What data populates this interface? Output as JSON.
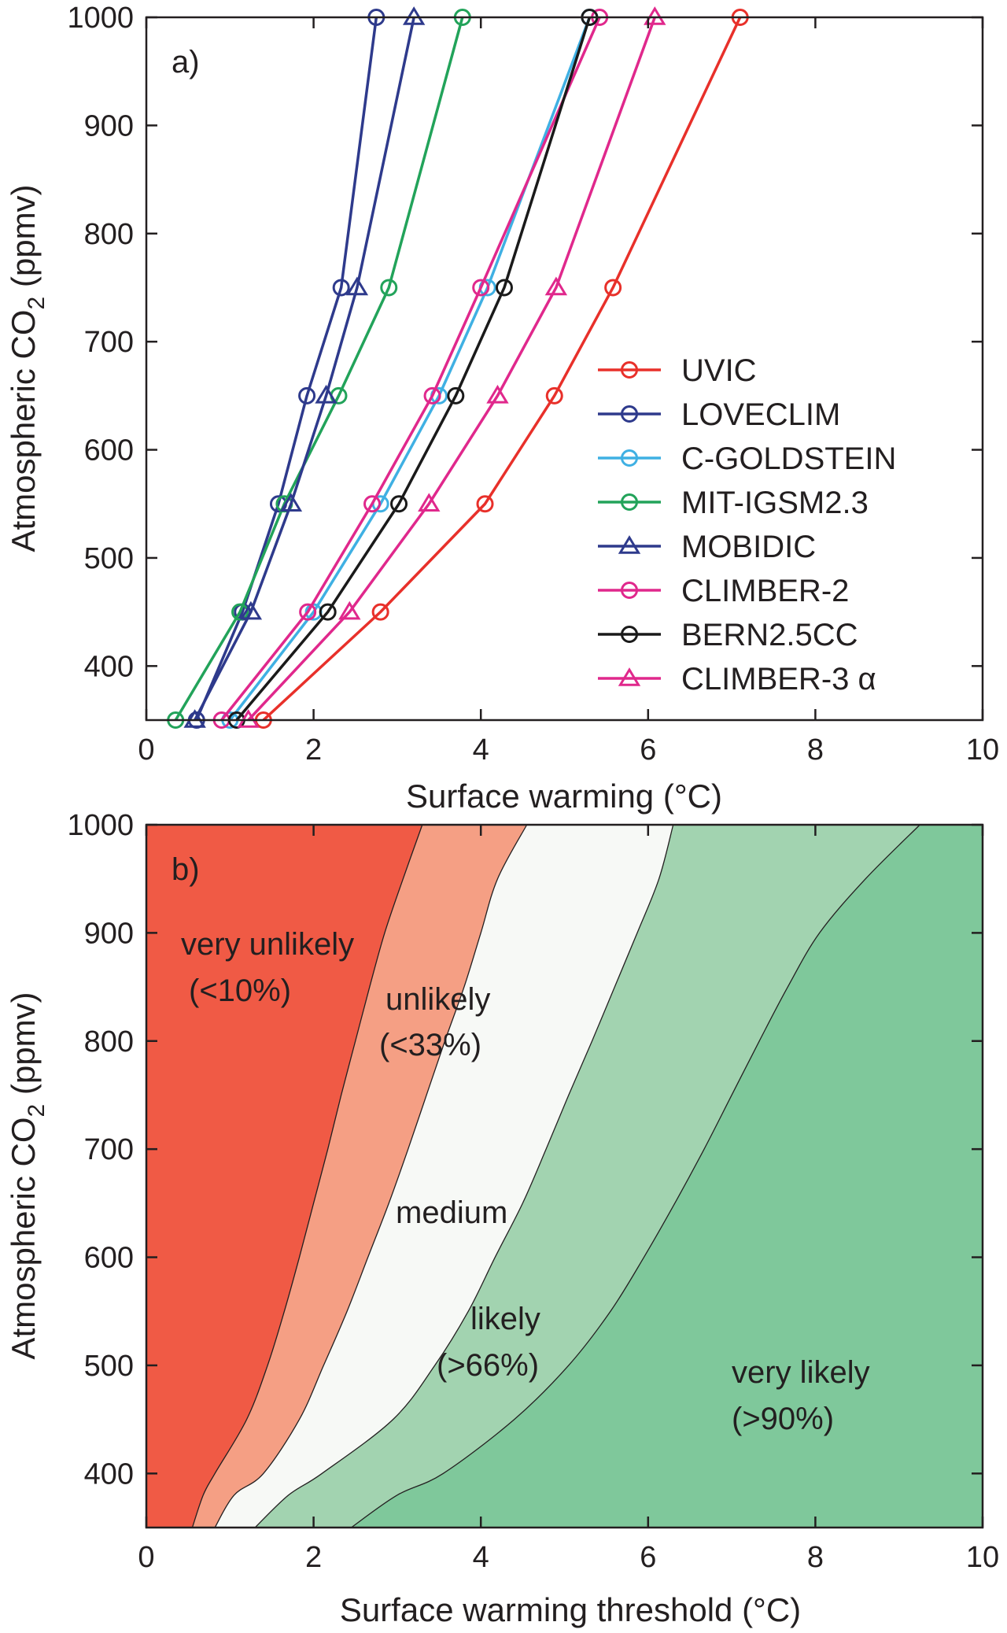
{
  "chart_data": [
    {
      "type": "line",
      "panel_label": "a)",
      "xlabel": "Surface warming (°C)",
      "ylabel": "Atmospheric CO₂ (ppmv)",
      "ylabel_main": "Atmospheric CO",
      "ylabel_sub": "2",
      "ylabel_tail": " (ppmv)",
      "xlim": [
        0,
        10
      ],
      "ylim": [
        350,
        1000
      ],
      "xticks": [
        "0",
        "2",
        "4",
        "6",
        "8",
        "10"
      ],
      "yticks": [
        "400",
        "500",
        "600",
        "700",
        "800",
        "900",
        "1000"
      ],
      "grid": false,
      "legend_position": "center-right",
      "y": [
        350,
        450,
        550,
        650,
        750,
        1000
      ],
      "series": [
        {
          "name": "UVIC",
          "color": "#e8302a",
          "marker": "circle",
          "x": [
            1.4,
            2.8,
            4.05,
            4.88,
            5.58,
            7.1
          ]
        },
        {
          "name": "LOVECLIM",
          "color": "#2e3a8c",
          "marker": "circle",
          "x": [
            0.6,
            1.15,
            1.58,
            1.92,
            2.33,
            2.75
          ]
        },
        {
          "name": "C-GOLDSTEIN",
          "color": "#3fb0e3",
          "marker": "circle",
          "x": [
            1.0,
            2.0,
            2.8,
            3.5,
            4.08,
            5.3
          ]
        },
        {
          "name": "MIT-IGSM2.3",
          "color": "#22a35a",
          "marker": "circle",
          "x": [
            0.35,
            1.12,
            1.65,
            2.3,
            2.9,
            3.78
          ]
        },
        {
          "name": "MOBIDIC",
          "color": "#2e3a8c",
          "marker": "triangle",
          "x": [
            0.58,
            1.25,
            1.73,
            2.15,
            2.52,
            3.2
          ]
        },
        {
          "name": "CLIMBER-2",
          "color": "#e0288c",
          "marker": "circle",
          "x": [
            0.9,
            1.93,
            2.7,
            3.42,
            4.0,
            5.42
          ]
        },
        {
          "name": "BERN2.5CC",
          "color": "#1a1a1a",
          "marker": "circle",
          "x": [
            1.08,
            2.17,
            3.02,
            3.7,
            4.28,
            5.3
          ]
        },
        {
          "name": "CLIMBER-3 α",
          "color": "#e0288c",
          "marker": "triangle",
          "x": [
            1.22,
            2.43,
            3.38,
            4.2,
            4.9,
            6.08
          ]
        }
      ]
    },
    {
      "type": "area",
      "panel_label": "b)",
      "xlabel": "Surface warming threshold (°C)",
      "ylabel": "Atmospheric CO₂ (ppmv)",
      "ylabel_main": "Atmospheric CO",
      "ylabel_sub": "2",
      "ylabel_tail": " (ppmv)",
      "xlim": [
        0,
        10
      ],
      "ylim": [
        350,
        1000
      ],
      "xticks": [
        "0",
        "2",
        "4",
        "6",
        "8",
        "10"
      ],
      "yticks": [
        "400",
        "500",
        "600",
        "700",
        "800",
        "900",
        "1000"
      ],
      "grid": false,
      "boundary_y": [
        350,
        380,
        400,
        450,
        500,
        550,
        600,
        650,
        700,
        750,
        800,
        850,
        900,
        950,
        1000
      ],
      "boundaries": [
        {
          "between": "very unlikely / unlikely",
          "x": [
            0.55,
            0.68,
            0.82,
            1.2,
            1.45,
            1.65,
            1.83,
            2.0,
            2.17,
            2.33,
            2.5,
            2.67,
            2.85,
            3.07,
            3.3
          ]
        },
        {
          "between": "unlikely / medium",
          "x": [
            0.82,
            1.05,
            1.4,
            1.83,
            2.12,
            2.4,
            2.65,
            2.9,
            3.13,
            3.35,
            3.57,
            3.8,
            4.0,
            4.2,
            4.55
          ]
        },
        {
          "between": "medium / likely",
          "x": [
            1.3,
            1.7,
            2.1,
            2.95,
            3.45,
            3.85,
            4.17,
            4.5,
            4.78,
            5.05,
            5.33,
            5.6,
            5.87,
            6.13,
            6.3
          ]
        },
        {
          "between": "likely / very likely",
          "x": [
            2.45,
            3.0,
            3.55,
            4.4,
            5.05,
            5.55,
            5.95,
            6.32,
            6.67,
            7.0,
            7.33,
            7.67,
            8.05,
            8.6,
            9.25
          ]
        }
      ],
      "regions": [
        {
          "label": "very unlikely",
          "range": "(<10%)",
          "color": "#f05a45"
        },
        {
          "label": "unlikely",
          "range": "(<33%)",
          "color": "#f59f84"
        },
        {
          "label": "medium",
          "range": "",
          "color": "#f7f9f6"
        },
        {
          "label": "likely",
          "range": "(>66%)",
          "color": "#a2d3b0"
        },
        {
          "label": "very likely",
          "range": "(>90%)",
          "color": "#7fc89b"
        }
      ]
    }
  ]
}
